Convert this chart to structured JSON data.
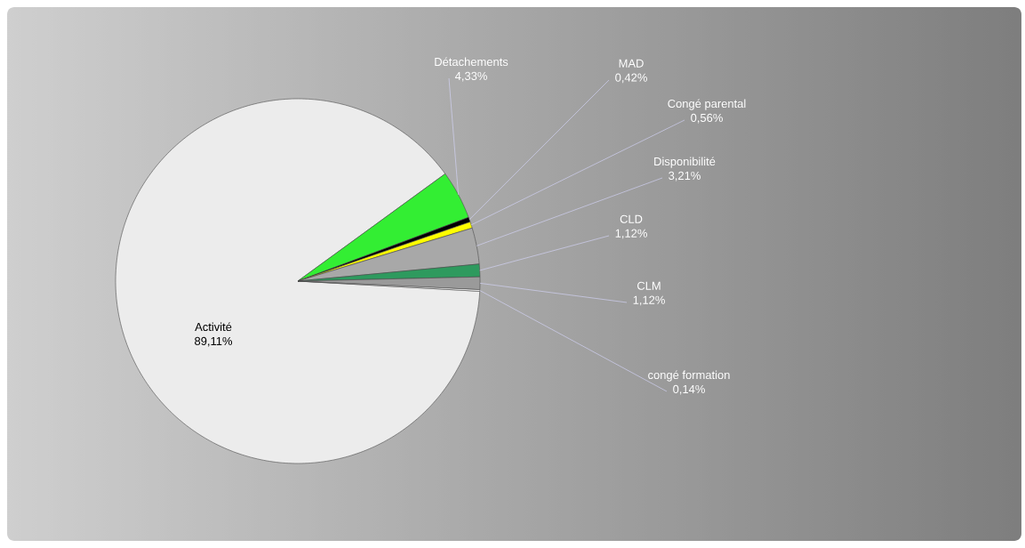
{
  "chart_data": {
    "type": "pie",
    "categories": [
      "Activité",
      "Détachements",
      "MAD",
      "Congé parental",
      "Disponibilité",
      "CLD",
      "CLM",
      "congé formation"
    ],
    "values": [
      89.11,
      4.33,
      0.42,
      0.56,
      3.21,
      1.12,
      1.12,
      0.14
    ],
    "value_labels": [
      "89,11%",
      "4,33%",
      "0,42%",
      "0,56%",
      "3,21%",
      "1,12%",
      "1,12%",
      "0,14%"
    ],
    "colors": [
      "#ececec",
      "#33ee33",
      "#000000",
      "#ffff00",
      "#a8a8a8",
      "#2e9a5e",
      "#9a9a9a",
      "#ffffff"
    ]
  }
}
